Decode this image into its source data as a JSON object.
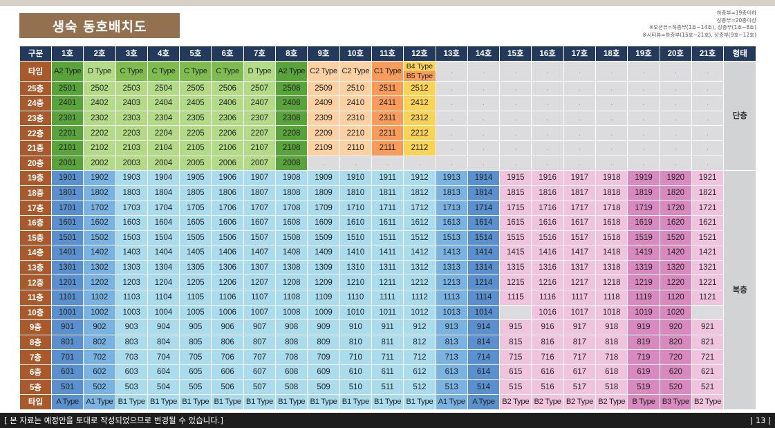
{
  "title": "생숙 동호배치도",
  "notes": [
    "하층부=19층이하",
    "상층부=20층이상",
    "※오션뷰=하층부(1호~14호), 상층부(1호~8호)",
    "※시티뷰=하층부(15호~21호), 상층부(9호~12호)"
  ],
  "header": {
    "label": "구분",
    "units": [
      "1호",
      "2호",
      "3호",
      "4호",
      "5호",
      "6호",
      "7호",
      "8호",
      "9호",
      "10호",
      "11호",
      "12호",
      "13호",
      "14호",
      "15호",
      "16호",
      "17호",
      "18호",
      "19호",
      "20호",
      "21호"
    ],
    "form_label": "형태"
  },
  "type_label": "타입",
  "top_types": [
    "A2 Type",
    "D Type",
    "C Type",
    "C Type",
    "C Type",
    "C Type",
    "D Type",
    "A2 Type",
    "C2 Type",
    "C2 Type",
    "C1 Type",
    [
      "B4 Type",
      "B5 Type"
    ],
    ".",
    ".",
    ".",
    ".",
    ".",
    ".",
    ".",
    ".",
    "."
  ],
  "floors": [
    {
      "label": "25층",
      "cells": [
        "2501",
        "2502",
        "2503",
        "2504",
        "2505",
        "2506",
        "2507",
        "2508",
        "2509",
        "2510",
        "2511",
        "2512",
        ".",
        ".",
        ".",
        ".",
        ".",
        ".",
        ".",
        ".",
        "."
      ]
    },
    {
      "label": "24층",
      "cells": [
        "2401",
        "2402",
        "2403",
        "2404",
        "2405",
        "2406",
        "2407",
        "2408",
        "2409",
        "2410",
        "2411",
        "2412",
        ".",
        ".",
        ".",
        ".",
        ".",
        ".",
        ".",
        ".",
        "."
      ]
    },
    {
      "label": "23층",
      "cells": [
        "2301",
        "2302",
        "2303",
        "2304",
        "2305",
        "2306",
        "2307",
        "2308",
        "2309",
        "2310",
        "2311",
        "2312",
        ".",
        ".",
        ".",
        ".",
        ".",
        ".",
        ".",
        ".",
        "."
      ]
    },
    {
      "label": "22층",
      "cells": [
        "2201",
        "2202",
        "2203",
        "2204",
        "2205",
        "2206",
        "2207",
        "2208",
        "2209",
        "2210",
        "2211",
        "2212",
        ".",
        ".",
        ".",
        ".",
        ".",
        ".",
        ".",
        ".",
        "."
      ]
    },
    {
      "label": "21층",
      "cells": [
        "2101",
        "2102",
        "2103",
        "2104",
        "2105",
        "2106",
        "2107",
        "2108",
        "2109",
        "2110",
        "2111",
        "2112",
        ".",
        ".",
        ".",
        ".",
        ".",
        ".",
        ".",
        ".",
        "."
      ]
    },
    {
      "label": "20층",
      "cells": [
        "2001",
        "2002",
        "2003",
        "2004",
        "2005",
        "2006",
        "2007",
        "2008",
        ".",
        ".",
        ".",
        ".",
        ".",
        ".",
        ".",
        ".",
        ".",
        ".",
        ".",
        ".",
        "."
      ]
    },
    {
      "label": "19층",
      "cells": [
        "1901",
        "1902",
        "1903",
        "1904",
        "1905",
        "1906",
        "1907",
        "1908",
        "1909",
        "1910",
        "1911",
        "1912",
        "1913",
        "1914",
        "1915",
        "1916",
        "1917",
        "1918",
        "1919",
        "1920",
        "1921"
      ]
    },
    {
      "label": "18층",
      "cells": [
        "1801",
        "1802",
        "1803",
        "1804",
        "1805",
        "1806",
        "1807",
        "1808",
        "1809",
        "1810",
        "1811",
        "1812",
        "1813",
        "1814",
        "1815",
        "1816",
        "1817",
        "1818",
        "1819",
        "1820",
        "1821"
      ]
    },
    {
      "label": "17층",
      "cells": [
        "1701",
        "1702",
        "1703",
        "1704",
        "1705",
        "1706",
        "1707",
        "1708",
        "1709",
        "1710",
        "1711",
        "1712",
        "1713",
        "1714",
        "1715",
        "1716",
        "1717",
        "1718",
        "1719",
        "1720",
        "1721"
      ]
    },
    {
      "label": "16층",
      "cells": [
        "1601",
        "1602",
        "1603",
        "1604",
        "1605",
        "1606",
        "1607",
        "1608",
        "1609",
        "1610",
        "1611",
        "1612",
        "1613",
        "1614",
        "1615",
        "1616",
        "1617",
        "1618",
        "1619",
        "1620",
        "1621"
      ]
    },
    {
      "label": "15층",
      "cells": [
        "1501",
        "1502",
        "1503",
        "1504",
        "1505",
        "1506",
        "1507",
        "1508",
        "1509",
        "1510",
        "1511",
        "1512",
        "1513",
        "1514",
        "1515",
        "1516",
        "1517",
        "1518",
        "1519",
        "1520",
        "1521"
      ]
    },
    {
      "label": "14층",
      "cells": [
        "1401",
        "1402",
        "1403",
        "1404",
        "1405",
        "1406",
        "1407",
        "1408",
        "1409",
        "1410",
        "1411",
        "1412",
        "1413",
        "1414",
        "1415",
        "1416",
        "1417",
        "1418",
        "1419",
        "1420",
        "1421"
      ]
    },
    {
      "label": "13층",
      "cells": [
        "1301",
        "1302",
        "1303",
        "1304",
        "1305",
        "1306",
        "1307",
        "1308",
        "1309",
        "1310",
        "1311",
        "1312",
        "1313",
        "1314",
        "1315",
        "1316",
        "1317",
        "1318",
        "1319",
        "1320",
        "1321"
      ]
    },
    {
      "label": "12층",
      "cells": [
        "1201",
        "1202",
        "1203",
        "1204",
        "1205",
        "1206",
        "1207",
        "1208",
        "1209",
        "1210",
        "1211",
        "1212",
        "1213",
        "1214",
        "1215",
        "1216",
        "1217",
        "1218",
        "1219",
        "1220",
        "1221"
      ]
    },
    {
      "label": "11층",
      "cells": [
        "1101",
        "1102",
        "1103",
        "1104",
        "1105",
        "1106",
        "1107",
        "1108",
        "1109",
        "1110",
        "1111",
        "1112",
        "1113",
        "1114",
        "1115",
        "1116",
        "1117",
        "1118",
        "1119",
        "1120",
        "1121"
      ]
    },
    {
      "label": "10층",
      "cells": [
        "1001",
        "1002",
        "1003",
        "1004",
        "1005",
        "1006",
        "1007",
        "1008",
        "1009",
        "1010",
        "1011",
        "1012",
        "1013",
        "1014",
        "",
        "1016",
        "1017",
        "1018",
        "1019",
        "1020",
        ""
      ]
    },
    {
      "label": "9층",
      "cells": [
        "901",
        "902",
        "903",
        "904",
        "905",
        "906",
        "907",
        "908",
        "909",
        "910",
        "911",
        "912",
        "913",
        "914",
        "915",
        "916",
        "917",
        "918",
        "919",
        "920",
        "921"
      ]
    },
    {
      "label": "8층",
      "cells": [
        "801",
        "802",
        "803",
        "804",
        "805",
        "806",
        "807",
        "808",
        "809",
        "810",
        "811",
        "812",
        "813",
        "814",
        "815",
        "816",
        "817",
        "818",
        "819",
        "820",
        "821"
      ]
    },
    {
      "label": "7층",
      "cells": [
        "701",
        "702",
        "703",
        "704",
        "705",
        "706",
        "707",
        "708",
        "709",
        "710",
        "711",
        "712",
        "713",
        "714",
        "715",
        "716",
        "717",
        "718",
        "719",
        "720",
        "721"
      ]
    },
    {
      "label": "6층",
      "cells": [
        "601",
        "602",
        "603",
        "604",
        "605",
        "606",
        "607",
        "608",
        "609",
        "610",
        "611",
        "612",
        "613",
        "614",
        "615",
        "616",
        "617",
        "618",
        "619",
        "620",
        "621"
      ]
    },
    {
      "label": "5층",
      "cells": [
        "501",
        "502",
        "503",
        "504",
        "505",
        "506",
        "507",
        "508",
        "509",
        "510",
        "511",
        "512",
        "513",
        "514",
        "515",
        "516",
        "517",
        "518",
        "519",
        "520",
        "521"
      ]
    }
  ],
  "bottom_types": [
    "A Type",
    "A1 Type",
    "B1 Type",
    "B1 Type",
    "B1 Type",
    "B1 Type",
    "B1 Type",
    "B1 Type",
    "B1 Type",
    "B1 Type",
    "B1 Type",
    "B1 Type",
    "A1 Type",
    "A Type",
    "B2 Type",
    "B2 Type",
    "B2 Type",
    "B2 Type",
    "B Type",
    "B3 Type",
    "B2 Type"
  ],
  "forms": {
    "upper": "단층",
    "lower": "복층"
  },
  "colors": {
    "header_navy": "#243a5c",
    "row_label_brown": "#a85a2c",
    "title_brown": "#93714f",
    "form_gray": "#d1d3d4",
    "empty_gray": "#dcdcde",
    "green": "#7ebc4f",
    "green_light": "#b3db87",
    "green_dark": "#58a43a",
    "orange_light": "#fbd1a4",
    "orange": "#f79c5b",
    "yellow": "#f9d357",
    "blue_light": "#aadcee",
    "blue": "#7ab3e1",
    "blue_dark": "#5a90cd",
    "pink_light": "#f1c4de",
    "pink": "#d889bf"
  },
  "footer": {
    "text": "[ 본 자료는 예정안을 토대로 작성되었으므로 변경될 수 있습니다.]",
    "page": "| 13 |"
  }
}
